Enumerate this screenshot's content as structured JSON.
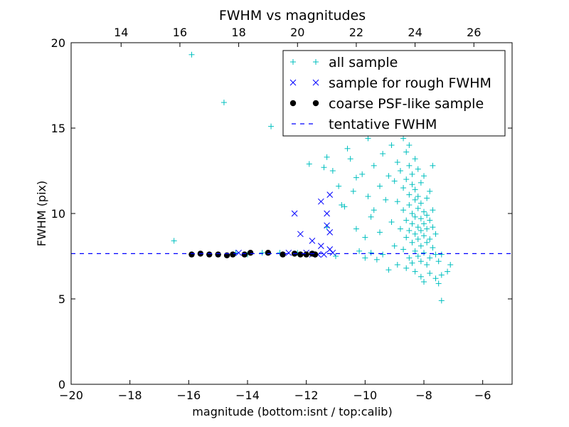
{
  "chart_data": {
    "type": "scatter",
    "title": "FWHM vs magnitudes",
    "xlabel": "magnitude (bottom:isnt / top:calib)",
    "ylabel": "FWHM (pix)",
    "xlim": [
      -20,
      -5
    ],
    "ylim": [
      0,
      20
    ],
    "x_ticks": [
      -20,
      -18,
      -16,
      -14,
      -12,
      -10,
      -8,
      -6
    ],
    "y_ticks": [
      0,
      5,
      10,
      15,
      20
    ],
    "top_x_offset": 32.3,
    "top_x_ticks": [
      14,
      16,
      18,
      20,
      22,
      24,
      26
    ],
    "grid": false,
    "legend_position": "top-right",
    "series": [
      {
        "name": "all sample",
        "marker": "plus",
        "color": "#00BFBF",
        "points": [
          [
            -16.5,
            8.4
          ],
          [
            -15.9,
            19.3
          ],
          [
            -14.8,
            16.5
          ],
          [
            -13.2,
            15.1
          ],
          [
            -14.4,
            7.7
          ],
          [
            -14.0,
            7.6
          ],
          [
            -13.5,
            7.7
          ],
          [
            -12.9,
            7.7
          ],
          [
            -12.3,
            7.7
          ],
          [
            -11.9,
            12.9
          ],
          [
            -11.4,
            12.7
          ],
          [
            -11.3,
            13.3
          ],
          [
            -11.3,
            9.2
          ],
          [
            -11.1,
            12.5
          ],
          [
            -11.0,
            7.5
          ],
          [
            -10.9,
            11.6
          ],
          [
            -10.8,
            10.5
          ],
          [
            -10.7,
            10.4
          ],
          [
            -10.6,
            13.8
          ],
          [
            -10.5,
            13.2
          ],
          [
            -10.4,
            11.3
          ],
          [
            -10.3,
            12.1
          ],
          [
            -10.3,
            9.1
          ],
          [
            -10.2,
            7.8
          ],
          [
            -10.1,
            12.3
          ],
          [
            -10.0,
            8.6
          ],
          [
            -10.0,
            7.4
          ],
          [
            -9.9,
            11.0
          ],
          [
            -9.9,
            14.4
          ],
          [
            -9.8,
            9.8
          ],
          [
            -9.8,
            7.7
          ],
          [
            -9.7,
            12.8
          ],
          [
            -9.7,
            10.2
          ],
          [
            -9.6,
            7.3
          ],
          [
            -9.5,
            11.6
          ],
          [
            -9.5,
            8.9
          ],
          [
            -9.4,
            13.5
          ],
          [
            -9.4,
            7.6
          ],
          [
            -9.3,
            10.8
          ],
          [
            -9.2,
            12.2
          ],
          [
            -9.2,
            6.7
          ],
          [
            -9.1,
            9.5
          ],
          [
            -9.1,
            14.0
          ],
          [
            -9.0,
            11.9
          ],
          [
            -9.0,
            8.1
          ],
          [
            -8.9,
            7.0
          ],
          [
            -8.9,
            10.7
          ],
          [
            -8.9,
            13.0
          ],
          [
            -8.8,
            9.1
          ],
          [
            -8.8,
            12.5
          ],
          [
            -8.8,
            15.0
          ],
          [
            -8.7,
            7.9
          ],
          [
            -8.7,
            10.2
          ],
          [
            -8.7,
            11.5
          ],
          [
            -8.7,
            14.4
          ],
          [
            -8.6,
            8.6
          ],
          [
            -8.6,
            9.6
          ],
          [
            -8.6,
            12.0
          ],
          [
            -8.6,
            13.6
          ],
          [
            -8.6,
            6.8
          ],
          [
            -8.5,
            7.4
          ],
          [
            -8.5,
            9.0
          ],
          [
            -8.5,
            10.5
          ],
          [
            -8.5,
            11.1
          ],
          [
            -8.5,
            12.8
          ],
          [
            -8.5,
            14.0
          ],
          [
            -8.4,
            8.3
          ],
          [
            -8.4,
            9.4
          ],
          [
            -8.4,
            10.0
          ],
          [
            -8.4,
            11.7
          ],
          [
            -8.4,
            12.3
          ],
          [
            -8.4,
            7.1
          ],
          [
            -8.3,
            7.8
          ],
          [
            -8.3,
            8.8
          ],
          [
            -8.3,
            9.8
          ],
          [
            -8.3,
            10.8
          ],
          [
            -8.3,
            11.4
          ],
          [
            -8.3,
            13.2
          ],
          [
            -8.3,
            6.6
          ],
          [
            -8.2,
            7.5
          ],
          [
            -8.2,
            8.5
          ],
          [
            -8.2,
            9.2
          ],
          [
            -8.2,
            10.3
          ],
          [
            -8.2,
            11.0
          ],
          [
            -8.2,
            12.6
          ],
          [
            -8.1,
            7.2
          ],
          [
            -8.1,
            8.1
          ],
          [
            -8.1,
            9.0
          ],
          [
            -8.1,
            9.7
          ],
          [
            -8.1,
            10.6
          ],
          [
            -8.1,
            11.8
          ],
          [
            -8.1,
            6.3
          ],
          [
            -8.0,
            7.7
          ],
          [
            -8.0,
            8.7
          ],
          [
            -8.0,
            9.4
          ],
          [
            -8.0,
            10.1
          ],
          [
            -8.0,
            12.2
          ],
          [
            -8.0,
            6.0
          ],
          [
            -7.9,
            7.0
          ],
          [
            -7.9,
            8.3
          ],
          [
            -7.9,
            9.1
          ],
          [
            -7.9,
            9.9
          ],
          [
            -7.9,
            10.9
          ],
          [
            -7.8,
            7.4
          ],
          [
            -7.8,
            8.5
          ],
          [
            -7.8,
            9.6
          ],
          [
            -7.8,
            11.3
          ],
          [
            -7.8,
            6.5
          ],
          [
            -7.7,
            8.0
          ],
          [
            -7.7,
            9.2
          ],
          [
            -7.7,
            10.2
          ],
          [
            -7.7,
            12.8
          ],
          [
            -7.6,
            7.6
          ],
          [
            -7.6,
            8.8
          ],
          [
            -7.6,
            6.2
          ],
          [
            -7.5,
            7.2
          ],
          [
            -7.5,
            5.9
          ],
          [
            -7.4,
            7.6
          ],
          [
            -7.4,
            6.4
          ],
          [
            -7.4,
            4.9
          ],
          [
            -7.2,
            6.6
          ],
          [
            -7.1,
            7.0
          ]
        ]
      },
      {
        "name": "sample for rough FWHM",
        "marker": "x",
        "color": "#0000FF",
        "points": [
          [
            -12.4,
            10.0
          ],
          [
            -12.2,
            8.8
          ],
          [
            -11.8,
            8.4
          ],
          [
            -11.5,
            10.7
          ],
          [
            -11.3,
            10.0
          ],
          [
            -11.2,
            11.1
          ],
          [
            -11.3,
            9.3
          ],
          [
            -11.2,
            8.9
          ],
          [
            -11.5,
            8.1
          ],
          [
            -11.2,
            7.9
          ],
          [
            -11.8,
            7.6
          ],
          [
            -11.6,
            7.6
          ],
          [
            -11.4,
            7.6
          ],
          [
            -11.1,
            7.7
          ],
          [
            -12.0,
            7.7
          ],
          [
            -12.6,
            7.7
          ],
          [
            -14.3,
            7.7
          ]
        ]
      },
      {
        "name": "coarse PSF-like sample",
        "marker": "dot",
        "color": "#000000",
        "points": [
          [
            -15.9,
            7.6
          ],
          [
            -15.6,
            7.65
          ],
          [
            -15.3,
            7.6
          ],
          [
            -15.0,
            7.6
          ],
          [
            -14.7,
            7.55
          ],
          [
            -14.5,
            7.6
          ],
          [
            -14.1,
            7.6
          ],
          [
            -13.9,
            7.7
          ],
          [
            -13.3,
            7.7
          ],
          [
            -12.8,
            7.6
          ],
          [
            -12.4,
            7.65
          ],
          [
            -12.2,
            7.6
          ],
          [
            -12.0,
            7.6
          ],
          [
            -11.8,
            7.65
          ],
          [
            -11.7,
            7.6
          ]
        ]
      },
      {
        "name": "tentative FWHM",
        "marker": "dashed-line",
        "color": "#0000FF",
        "value": 7.65
      }
    ]
  }
}
